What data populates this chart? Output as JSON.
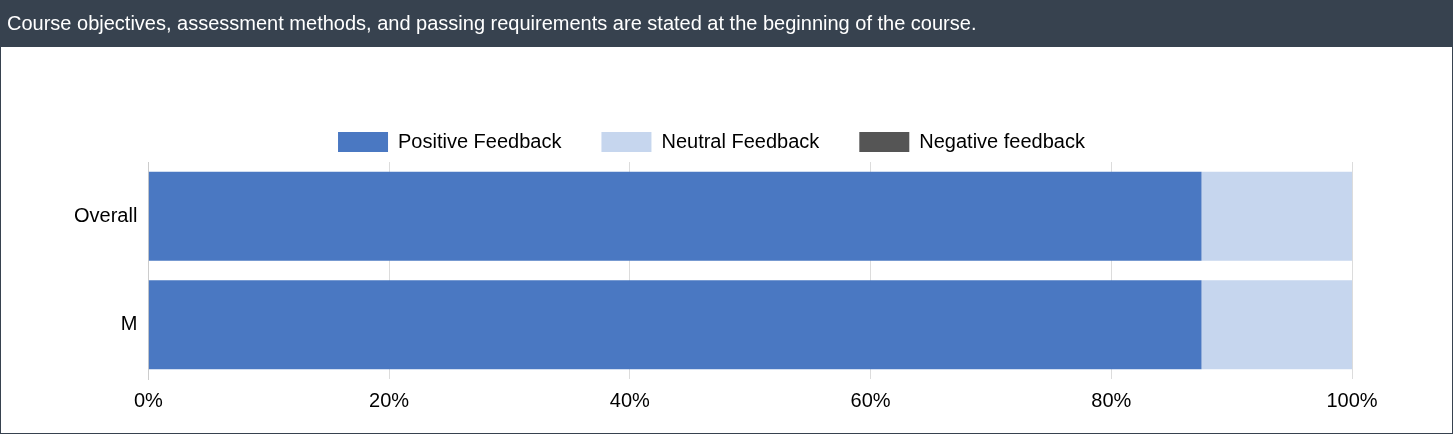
{
  "chart_data": {
    "type": "bar",
    "orientation": "horizontal",
    "stacked": true,
    "title": "Course objectives, assessment methods, and passing requirements are stated at the beginning of the course.",
    "categories": [
      "Overall",
      "M"
    ],
    "series": [
      {
        "name": "Positive Feedback",
        "color": "#4a78c2",
        "values": [
          87.5,
          87.5
        ]
      },
      {
        "name": "Neutral Feedback",
        "color": "#c6d6ee",
        "values": [
          12.5,
          12.5
        ]
      },
      {
        "name": "Negative feedback",
        "color": "#555555",
        "values": [
          0,
          0
        ]
      }
    ],
    "xlim": [
      0,
      100
    ],
    "xticks": [
      {
        "value": 0,
        "label": "0%"
      },
      {
        "value": 20,
        "label": "20%"
      },
      {
        "value": 40,
        "label": "40%"
      },
      {
        "value": 60,
        "label": "60%"
      },
      {
        "value": 80,
        "label": "80%"
      },
      {
        "value": 100,
        "label": "100%"
      }
    ],
    "grid": "x",
    "legend": "top"
  }
}
